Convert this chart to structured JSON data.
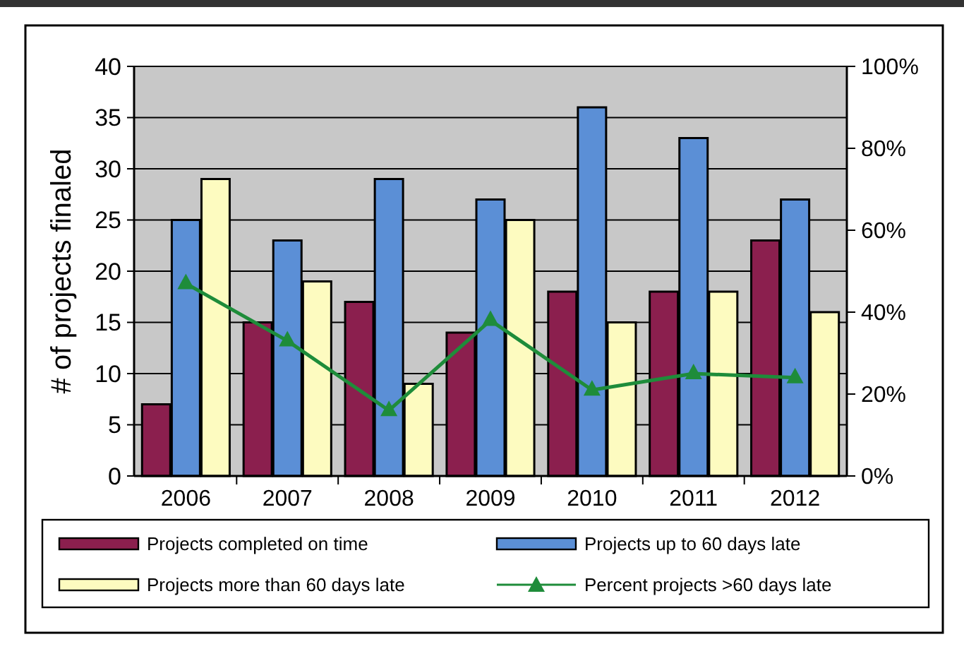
{
  "chart_data": {
    "type": "bar",
    "ylabel": "# of projects finaled",
    "categories": [
      "2006",
      "2007",
      "2008",
      "2009",
      "2010",
      "2011",
      "2012"
    ],
    "series": [
      {
        "name": "Projects completed on time",
        "color": "#8b1f4e",
        "values": [
          7,
          15,
          17,
          14,
          18,
          18,
          23
        ]
      },
      {
        "name": "Projects up to 60 days late",
        "color": "#5b8fd6",
        "values": [
          25,
          23,
          29,
          27,
          36,
          33,
          27
        ]
      },
      {
        "name": "Projects more than 60 days late",
        "color": "#fdfbc0",
        "values": [
          29,
          19,
          9,
          25,
          15,
          18,
          16
        ]
      },
      {
        "name": "Percent projects >60 days late",
        "type": "line",
        "axis": "y2",
        "color": "#1e8c3a",
        "marker": "triangle",
        "values": [
          47,
          33,
          16,
          38,
          21,
          25,
          24
        ]
      }
    ],
    "ylim": [
      0,
      40
    ],
    "yticks": [
      0,
      5,
      10,
      15,
      20,
      25,
      30,
      35,
      40
    ],
    "y2lim": [
      0,
      100
    ],
    "y2ticks": [
      {
        "value": 0,
        "label": "0%"
      },
      {
        "value": 20,
        "label": "20%"
      },
      {
        "value": 40,
        "label": "40%"
      },
      {
        "value": 60,
        "label": "60%"
      },
      {
        "value": 80,
        "label": "80%"
      },
      {
        "value": 100,
        "label": "100%"
      }
    ],
    "grid": "y",
    "legend": "bottom"
  }
}
